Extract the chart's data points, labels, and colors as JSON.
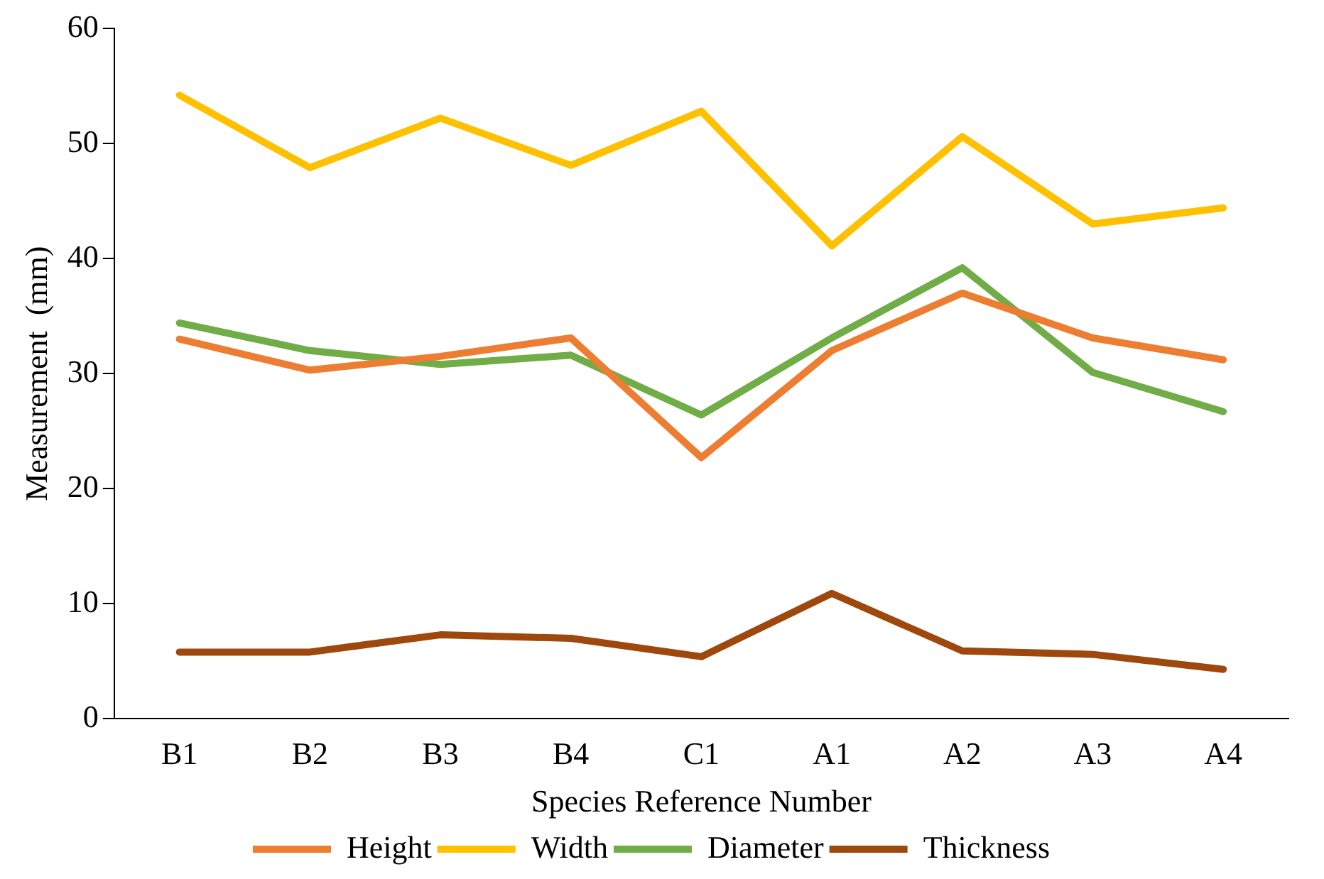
{
  "chart_data": {
    "type": "line",
    "xlabel": "Species Reference Number",
    "ylabel": "Measurement  (mm)",
    "categories": [
      "B1",
      "B2",
      "B3",
      "B4",
      "C1",
      "A1",
      "A2",
      "A3",
      "A4"
    ],
    "ylim": [
      0,
      60
    ],
    "yticks": [
      0,
      10,
      20,
      30,
      40,
      50,
      60
    ],
    "grid": false,
    "legend": "bottom",
    "marker": "none",
    "line_style": "solid",
    "series": [
      {
        "name": "Height",
        "color": "#ed7d31",
        "values": [
          33.0,
          30.3,
          31.5,
          33.1,
          22.7,
          32.0,
          37.0,
          33.1,
          31.2
        ]
      },
      {
        "name": "Width",
        "color": "#ffc000",
        "values": [
          54.2,
          47.9,
          52.2,
          48.1,
          52.8,
          41.1,
          50.6,
          43.0,
          44.4
        ]
      },
      {
        "name": "Diameter",
        "color": "#70ad47",
        "values": [
          34.4,
          32.0,
          30.8,
          31.6,
          26.4,
          33.1,
          39.2,
          30.1,
          26.7
        ]
      },
      {
        "name": "Thickness",
        "color": "#9e480e",
        "values": [
          5.8,
          5.8,
          7.3,
          7.0,
          5.4,
          10.9,
          5.9,
          5.6,
          4.3
        ]
      }
    ]
  }
}
